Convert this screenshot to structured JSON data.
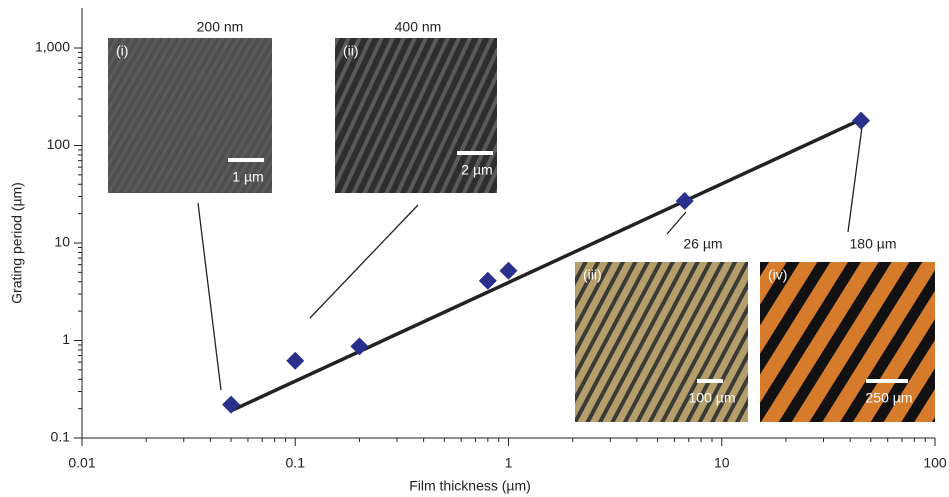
{
  "chart_data": {
    "type": "scatter",
    "x_label": "Film thickness (µm)",
    "y_label": "Grating period (µm)",
    "x": [
      0.05,
      0.1,
      0.2,
      0.8,
      1,
      6.7,
      45
    ],
    "series": [
      {
        "color": "#2b2f8c",
        "values": [
          0.22,
          0.62,
          0.87,
          4.1,
          5.2,
          27,
          180
        ]
      }
    ],
    "fit": {
      "color": "#222222",
      "x": [
        0.05,
        45
      ],
      "y": [
        0.19,
        185
      ]
    },
    "log_x": true,
    "log_y": true,
    "xlim": [
      0.01,
      100
    ],
    "ylim": [
      0.1,
      1000
    ],
    "xticks": [
      0.01,
      0.1,
      1,
      10,
      100
    ],
    "yticks": [
      0.1,
      1,
      10,
      100,
      {
        "value": 1000,
        "label": "1,000"
      }
    ],
    "insets": [
      {
        "label": "(i)",
        "title": "200 nm",
        "scale_bar": "1 µm"
      },
      {
        "label": "(ii)",
        "title": "400 nm",
        "scale_bar": "2 µm"
      },
      {
        "label": "(iii)",
        "title": "26 µm",
        "scale_bar": "100 µm"
      },
      {
        "label": "(iv)",
        "title": "180 µm",
        "scale_bar": "250 µm"
      }
    ]
  }
}
